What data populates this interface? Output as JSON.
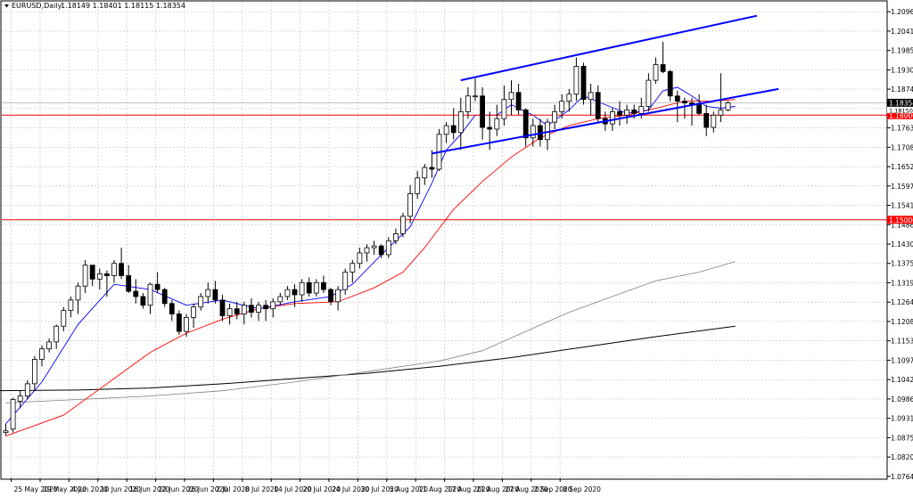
{
  "header": {
    "symbol_title": "EURUSD,Daily",
    "ohlc": "1.18149 1.18401 1.18115 1.18354"
  },
  "colors": {
    "background": "#ffffff",
    "grid": "#c0c0c0",
    "candle_up": "#ffffff",
    "candle_down": "#000000",
    "ma_fast": "#0000ff",
    "ma_medium": "#ff0000",
    "ma_slow": "#808080",
    "ma_slowest": "#000000",
    "channel": "#0000ff",
    "hline": "#ff0000",
    "price_tag": "#000000"
  },
  "chart_data": {
    "type": "candlestick",
    "symbol": "EURUSD",
    "timeframe": "Daily",
    "ylim": [
      1.0759,
      1.2125
    ],
    "y_ticks": [
      "1.20965",
      "1.20410",
      "1.19855",
      "1.19300",
      "1.18745",
      "1.18190",
      "1.17635",
      "1.17080",
      "1.16525",
      "1.15970",
      "1.15415",
      "1.14860",
      "1.14305",
      "1.13750",
      "1.13195",
      "1.12640",
      "1.12085",
      "1.11530",
      "1.10975",
      "1.10420",
      "1.09865",
      "1.09310",
      "1.08755",
      "1.08200",
      "1.07645"
    ],
    "x_labels": [
      "25 May 2020",
      "29 May 2020",
      "4 Jun 2020",
      "10 Jun 2020",
      "16 Jun 2020",
      "22 Jun 2020",
      "26 Jun 2020",
      "2 Jul 2020",
      "8 Jul 2020",
      "14 Jul 2020",
      "20 Jul 2020",
      "24 Jul 2020",
      "30 Jul 2020",
      "5 Aug 2020",
      "11 Aug 2020",
      "17 Aug 2020",
      "21 Aug 2020",
      "27 Aug 2020",
      "2 Sep 2020",
      "8 Sep 2020"
    ],
    "candles": [
      [
        1.089,
        1.0915,
        1.0882,
        1.0895
      ],
      [
        1.09,
        1.099,
        1.089,
        1.0985
      ],
      [
        1.098,
        1.101,
        1.096,
        1.0995
      ],
      [
        1.0995,
        1.104,
        1.0985,
        1.103
      ],
      [
        1.103,
        1.111,
        1.101,
        1.11
      ],
      [
        1.11,
        1.114,
        1.108,
        1.113
      ],
      [
        1.113,
        1.116,
        1.112,
        1.115
      ],
      [
        1.115,
        1.12,
        1.113,
        1.1195
      ],
      [
        1.1195,
        1.125,
        1.118,
        1.124
      ],
      [
        1.124,
        1.128,
        1.122,
        1.127
      ],
      [
        1.127,
        1.132,
        1.123,
        1.131
      ],
      [
        1.131,
        1.1385,
        1.129,
        1.137
      ],
      [
        1.137,
        1.137,
        1.131,
        1.133
      ],
      [
        1.133,
        1.136,
        1.13,
        1.1345
      ],
      [
        1.1345,
        1.1355,
        1.128,
        1.134
      ],
      [
        1.134,
        1.1385,
        1.132,
        1.1375
      ],
      [
        1.1375,
        1.142,
        1.133,
        1.134
      ],
      [
        1.134,
        1.137,
        1.129,
        1.1295
      ],
      [
        1.1295,
        1.133,
        1.126,
        1.128
      ],
      [
        1.128,
        1.129,
        1.1245,
        1.1255
      ],
      [
        1.1255,
        1.132,
        1.123,
        1.1315
      ],
      [
        1.1315,
        1.135,
        1.129,
        1.13
      ],
      [
        1.13,
        1.1305,
        1.125,
        1.126
      ],
      [
        1.126,
        1.127,
        1.121,
        1.123
      ],
      [
        1.123,
        1.124,
        1.117,
        1.118
      ],
      [
        1.118,
        1.123,
        1.1165,
        1.122
      ],
      [
        1.122,
        1.126,
        1.119,
        1.125
      ],
      [
        1.125,
        1.129,
        1.124,
        1.128
      ],
      [
        1.128,
        1.132,
        1.126,
        1.13
      ],
      [
        1.13,
        1.1325,
        1.126,
        1.127
      ],
      [
        1.127,
        1.1285,
        1.121,
        1.1225
      ],
      [
        1.1225,
        1.126,
        1.12,
        1.1245
      ],
      [
        1.1245,
        1.1265,
        1.1215,
        1.123
      ],
      [
        1.123,
        1.1265,
        1.12,
        1.1255
      ],
      [
        1.1255,
        1.1275,
        1.122,
        1.1235
      ],
      [
        1.1235,
        1.1265,
        1.121,
        1.1255
      ],
      [
        1.1255,
        1.127,
        1.121,
        1.1245
      ],
      [
        1.1245,
        1.1275,
        1.122,
        1.1265
      ],
      [
        1.1265,
        1.129,
        1.1255,
        1.128
      ],
      [
        1.128,
        1.131,
        1.127,
        1.13
      ],
      [
        1.13,
        1.1315,
        1.125,
        1.1285
      ],
      [
        1.1285,
        1.133,
        1.1265,
        1.132
      ],
      [
        1.132,
        1.1335,
        1.128,
        1.129
      ],
      [
        1.129,
        1.133,
        1.128,
        1.132
      ],
      [
        1.132,
        1.134,
        1.129,
        1.13
      ],
      [
        1.13,
        1.1305,
        1.1255,
        1.1265
      ],
      [
        1.1265,
        1.131,
        1.124,
        1.13
      ],
      [
        1.13,
        1.136,
        1.1285,
        1.135
      ],
      [
        1.135,
        1.1385,
        1.132,
        1.1375
      ],
      [
        1.1375,
        1.142,
        1.136,
        1.1405
      ],
      [
        1.1405,
        1.143,
        1.138,
        1.142
      ],
      [
        1.142,
        1.144,
        1.14,
        1.1425
      ],
      [
        1.1425,
        1.143,
        1.139,
        1.14
      ],
      [
        1.14,
        1.145,
        1.139,
        1.144
      ],
      [
        1.144,
        1.1475,
        1.143,
        1.146
      ],
      [
        1.146,
        1.152,
        1.145,
        1.151
      ],
      [
        1.151,
        1.16,
        1.149,
        1.1575
      ],
      [
        1.1575,
        1.164,
        1.156,
        1.162
      ],
      [
        1.162,
        1.166,
        1.16,
        1.165
      ],
      [
        1.165,
        1.17,
        1.162,
        1.1645
      ],
      [
        1.1645,
        1.176,
        1.164,
        1.1745
      ],
      [
        1.1745,
        1.178,
        1.172,
        1.177
      ],
      [
        1.177,
        1.182,
        1.173,
        1.175
      ],
      [
        1.175,
        1.185,
        1.17,
        1.181
      ],
      [
        1.181,
        1.188,
        1.179,
        1.1855
      ],
      [
        1.1855,
        1.1905,
        1.184,
        1.1855
      ],
      [
        1.1855,
        1.188,
        1.173,
        1.1765
      ],
      [
        1.1765,
        1.181,
        1.17,
        1.176
      ],
      [
        1.176,
        1.183,
        1.174,
        1.179
      ],
      [
        1.179,
        1.1885,
        1.177,
        1.1845
      ],
      [
        1.1845,
        1.19,
        1.18,
        1.1865
      ],
      [
        1.1865,
        1.189,
        1.18,
        1.1815
      ],
      [
        1.1815,
        1.182,
        1.171,
        1.1735
      ],
      [
        1.1735,
        1.179,
        1.171,
        1.177
      ],
      [
        1.177,
        1.179,
        1.171,
        1.173
      ],
      [
        1.173,
        1.179,
        1.17,
        1.178
      ],
      [
        1.178,
        1.183,
        1.176,
        1.181
      ],
      [
        1.181,
        1.186,
        1.179,
        1.184
      ],
      [
        1.184,
        1.1875,
        1.181,
        1.186
      ],
      [
        1.186,
        1.1965,
        1.184,
        1.194
      ],
      [
        1.194,
        1.195,
        1.183,
        1.1845
      ],
      [
        1.1845,
        1.189,
        1.18,
        1.1865
      ],
      [
        1.1865,
        1.1885,
        1.178,
        1.179
      ],
      [
        1.179,
        1.181,
        1.1755,
        1.1775
      ],
      [
        1.1775,
        1.182,
        1.1755,
        1.181
      ],
      [
        1.181,
        1.184,
        1.177,
        1.18
      ],
      [
        1.18,
        1.183,
        1.1775,
        1.1815
      ],
      [
        1.1815,
        1.183,
        1.179,
        1.1805
      ],
      [
        1.1805,
        1.185,
        1.179,
        1.1825
      ],
      [
        1.1825,
        1.192,
        1.181,
        1.19
      ],
      [
        1.19,
        1.1965,
        1.189,
        1.1945
      ],
      [
        1.1945,
        1.201,
        1.192,
        1.1925
      ],
      [
        1.1925,
        1.193,
        1.184,
        1.1855
      ],
      [
        1.1855,
        1.187,
        1.178,
        1.184
      ],
      [
        1.184,
        1.185,
        1.179,
        1.1835
      ],
      [
        1.1835,
        1.185,
        1.177,
        1.183
      ],
      [
        1.183,
        1.186,
        1.18,
        1.1805
      ],
      [
        1.1805,
        1.183,
        1.174,
        1.1765
      ],
      [
        1.1765,
        1.181,
        1.175,
        1.18
      ],
      [
        1.18,
        1.192,
        1.178,
        1.1815
      ],
      [
        1.1815,
        1.184,
        1.1811,
        1.1835
      ]
    ],
    "ma_fast": [
      [
        0,
        1.0915
      ],
      [
        5,
        1.1035
      ],
      [
        10,
        1.12
      ],
      [
        15,
        1.1315
      ],
      [
        20,
        1.13
      ],
      [
        25,
        1.1255
      ],
      [
        30,
        1.127
      ],
      [
        35,
        1.1245
      ],
      [
        40,
        1.1265
      ],
      [
        45,
        1.128
      ],
      [
        48,
        1.1315
      ],
      [
        52,
        1.14
      ],
      [
        56,
        1.148
      ],
      [
        59,
        1.1605
      ],
      [
        61,
        1.17
      ],
      [
        63,
        1.1745
      ],
      [
        65,
        1.18
      ],
      [
        68,
        1.18
      ],
      [
        70,
        1.183
      ],
      [
        73,
        1.18
      ],
      [
        75,
        1.177
      ],
      [
        78,
        1.1815
      ],
      [
        80,
        1.1855
      ],
      [
        83,
        1.183
      ],
      [
        86,
        1.1805
      ],
      [
        89,
        1.1815
      ],
      [
        91,
        1.187
      ],
      [
        93,
        1.188
      ],
      [
        95,
        1.1855
      ],
      [
        97,
        1.1825
      ],
      [
        99,
        1.182
      ],
      [
        101,
        1.1825
      ]
    ],
    "ma_medium": [
      [
        0,
        1.088
      ],
      [
        8,
        1.094
      ],
      [
        15,
        1.1045
      ],
      [
        20,
        1.112
      ],
      [
        25,
        1.1175
      ],
      [
        30,
        1.1215
      ],
      [
        35,
        1.1245
      ],
      [
        40,
        1.126
      ],
      [
        46,
        1.1265
      ],
      [
        51,
        1.1305
      ],
      [
        55,
        1.135
      ],
      [
        58,
        1.142
      ],
      [
        62,
        1.153
      ],
      [
        66,
        1.161
      ],
      [
        70,
        1.168
      ],
      [
        74,
        1.1735
      ],
      [
        78,
        1.177
      ],
      [
        82,
        1.179
      ],
      [
        86,
        1.18
      ],
      [
        90,
        1.182
      ],
      [
        94,
        1.184
      ],
      [
        98,
        1.184
      ],
      [
        101,
        1.1845
      ]
    ],
    "ma_slow": [
      [
        0,
        1.0975
      ],
      [
        10,
        1.0985
      ],
      [
        20,
        1.0995
      ],
      [
        30,
        1.101
      ],
      [
        40,
        1.1035
      ],
      [
        50,
        1.1065
      ],
      [
        60,
        1.1095
      ],
      [
        66,
        1.1125
      ],
      [
        72,
        1.118
      ],
      [
        78,
        1.1235
      ],
      [
        84,
        1.128
      ],
      [
        90,
        1.1325
      ],
      [
        96,
        1.135
      ],
      [
        101,
        1.138
      ]
    ],
    "ma_slowest": [
      [
        -1,
        1.101
      ],
      [
        10,
        1.1012
      ],
      [
        20,
        1.1018
      ],
      [
        30,
        1.103
      ],
      [
        40,
        1.1045
      ],
      [
        50,
        1.106
      ],
      [
        60,
        1.108
      ],
      [
        70,
        1.1105
      ],
      [
        80,
        1.1135
      ],
      [
        90,
        1.1165
      ],
      [
        101,
        1.1195
      ]
    ],
    "channel_upper": [
      [
        63,
        1.19
      ],
      [
        104,
        1.2085
      ]
    ],
    "channel_lower": [
      [
        59,
        1.169
      ],
      [
        107,
        1.1875
      ]
    ],
    "hlines": [
      {
        "value": 1.18,
        "label": "1.18000"
      },
      {
        "value": 1.15,
        "label": "1.15000"
      }
    ],
    "last_price": {
      "value": 1.18354,
      "label": "1.18354"
    },
    "extra_tag": {
      "value": 1.1815,
      "label": "1.18150"
    },
    "grid": true,
    "legend": "none"
  }
}
